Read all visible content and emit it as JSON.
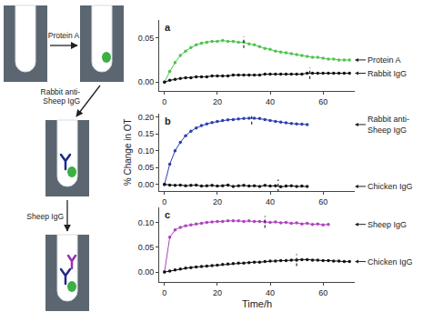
{
  "chart_data": [
    {
      "type": "line",
      "title": "a",
      "grid": false,
      "marker": "circle",
      "xlim": [
        -2,
        72
      ],
      "xticks": [
        0,
        20,
        40,
        60
      ],
      "ylim": [
        -0.01,
        0.07
      ],
      "yticks": [
        {
          "value": 0,
          "label": "0.00"
        },
        {
          "value": 0.05,
          "label": "0.05"
        }
      ],
      "series": [
        {
          "name": "Protein A",
          "color": "#4cc44c",
          "marked_time": 30,
          "x": [
            0,
            2,
            4,
            6,
            8,
            10,
            12,
            14,
            16,
            18,
            20,
            22,
            24,
            26,
            28,
            30,
            32,
            34,
            36,
            38,
            40,
            42,
            44,
            46,
            48,
            50,
            52,
            54,
            56,
            58,
            60,
            62,
            64,
            66,
            68,
            70
          ],
          "values": [
            0.0,
            0.012,
            0.022,
            0.03,
            0.035,
            0.039,
            0.042,
            0.044,
            0.045,
            0.046,
            0.046,
            0.047,
            0.046,
            0.046,
            0.045,
            0.045,
            0.043,
            0.042,
            0.04,
            0.038,
            0.037,
            0.035,
            0.034,
            0.033,
            0.032,
            0.031,
            0.03,
            0.029,
            0.028,
            0.028,
            0.027,
            0.026,
            0.026,
            0.025,
            0.025,
            0.025
          ]
        },
        {
          "name": "Rabbit IgG",
          "color": "#111111",
          "marked_time": 55,
          "x": [
            0,
            2,
            4,
            6,
            8,
            10,
            12,
            14,
            16,
            18,
            20,
            22,
            24,
            26,
            28,
            30,
            32,
            34,
            36,
            38,
            40,
            42,
            44,
            46,
            48,
            50,
            52,
            54,
            56,
            58,
            60,
            62,
            64,
            66,
            68,
            70
          ],
          "values": [
            0.0,
            0.002,
            0.003,
            0.004,
            0.005,
            0.005,
            0.006,
            0.006,
            0.006,
            0.007,
            0.007,
            0.007,
            0.007,
            0.008,
            0.008,
            0.008,
            0.008,
            0.008,
            0.008,
            0.009,
            0.009,
            0.009,
            0.009,
            0.009,
            0.009,
            0.009,
            0.009,
            0.01,
            0.01,
            0.01,
            0.01,
            0.01,
            0.01,
            0.01,
            0.01,
            0.01
          ]
        }
      ]
    },
    {
      "type": "line",
      "title": "b",
      "grid": false,
      "marker": "circle",
      "y_label": "% Change in OT",
      "xlim": [
        -2,
        72
      ],
      "xticks": [
        0,
        20,
        40,
        60
      ],
      "ylim": [
        -0.02,
        0.21
      ],
      "yticks": [
        {
          "value": 0,
          "label": "0.00"
        },
        {
          "value": 0.05,
          "label": "0.05"
        },
        {
          "value": 0.1,
          "label": "0.10"
        },
        {
          "value": 0.15,
          "label": "0.15"
        },
        {
          "value": 0.2,
          "label": "0.20"
        }
      ],
      "series": [
        {
          "name": "Rabbit anti-Sheep IgG",
          "color": "#2a3fb0",
          "marked_time": 33,
          "x": [
            0,
            2,
            4,
            6,
            8,
            10,
            12,
            14,
            16,
            18,
            20,
            22,
            24,
            26,
            28,
            30,
            32,
            34,
            36,
            38,
            40,
            42,
            44,
            46,
            48,
            50,
            52,
            54
          ],
          "values": [
            0.0,
            0.06,
            0.1,
            0.125,
            0.145,
            0.158,
            0.168,
            0.175,
            0.18,
            0.184,
            0.187,
            0.19,
            0.192,
            0.193,
            0.195,
            0.196,
            0.197,
            0.197,
            0.196,
            0.193,
            0.19,
            0.187,
            0.185,
            0.183,
            0.181,
            0.18,
            0.179,
            0.178
          ]
        },
        {
          "name": "Chicken IgG",
          "color": "#111111",
          "marked_time": 43,
          "x": [
            0,
            2,
            4,
            6,
            8,
            10,
            12,
            14,
            16,
            18,
            20,
            22,
            24,
            26,
            28,
            30,
            32,
            34,
            36,
            38,
            40,
            42,
            44,
            46,
            48,
            50,
            52,
            54
          ],
          "values": [
            0.0,
            -0.002,
            -0.003,
            -0.002,
            -0.004,
            -0.003,
            -0.002,
            -0.005,
            -0.004,
            -0.003,
            -0.005,
            -0.004,
            -0.002,
            -0.006,
            -0.004,
            -0.003,
            -0.005,
            -0.004,
            -0.006,
            -0.003,
            -0.005,
            -0.004,
            -0.007,
            -0.005,
            -0.004,
            -0.006,
            -0.005,
            -0.006
          ]
        }
      ]
    },
    {
      "type": "line",
      "title": "c",
      "grid": false,
      "marker": "circle",
      "x_label": "Time/h",
      "xlim": [
        -2,
        72
      ],
      "xticks": [
        0,
        20,
        40,
        60
      ],
      "ylim": [
        -0.02,
        0.13
      ],
      "yticks": [
        {
          "value": 0,
          "label": "0.00"
        },
        {
          "value": 0.05,
          "label": "0.05"
        },
        {
          "value": 0.1,
          "label": "0.10"
        }
      ],
      "series": [
        {
          "name": "Sheep IgG",
          "color": "#b040c0",
          "marked_time": 38,
          "x": [
            0,
            2,
            4,
            6,
            8,
            10,
            12,
            14,
            16,
            18,
            20,
            22,
            24,
            26,
            28,
            30,
            32,
            34,
            36,
            38,
            40,
            42,
            44,
            46,
            48,
            50,
            52,
            54,
            56,
            58,
            60,
            62
          ],
          "values": [
            0.0,
            0.07,
            0.085,
            0.09,
            0.093,
            0.095,
            0.097,
            0.098,
            0.1,
            0.101,
            0.102,
            0.102,
            0.103,
            0.103,
            0.103,
            0.102,
            0.103,
            0.102,
            0.102,
            0.101,
            0.1,
            0.101,
            0.099,
            0.1,
            0.098,
            0.099,
            0.097,
            0.098,
            0.096,
            0.097,
            0.095,
            0.096
          ]
        },
        {
          "name": "Chicken IgG",
          "color": "#111111",
          "marked_time": 50,
          "x": [
            0,
            2,
            4,
            6,
            8,
            10,
            12,
            14,
            16,
            18,
            20,
            22,
            24,
            26,
            28,
            30,
            32,
            34,
            36,
            38,
            40,
            42,
            44,
            46,
            48,
            50,
            52,
            54,
            56,
            58,
            60,
            62,
            64,
            66,
            68,
            70
          ],
          "values": [
            0.0,
            0.002,
            0.004,
            0.006,
            0.008,
            0.009,
            0.01,
            0.011,
            0.012,
            0.013,
            0.014,
            0.015,
            0.016,
            0.017,
            0.018,
            0.018,
            0.019,
            0.02,
            0.02,
            0.021,
            0.022,
            0.022,
            0.023,
            0.023,
            0.024,
            0.024,
            0.025,
            0.025,
            0.024,
            0.024,
            0.023,
            0.023,
            0.022,
            0.022,
            0.021,
            0.021
          ]
        }
      ]
    }
  ],
  "diagram": {
    "arrows": [
      "Protein A",
      "Rabbit anti-Sheep IgG",
      "Sheep IgG"
    ]
  }
}
